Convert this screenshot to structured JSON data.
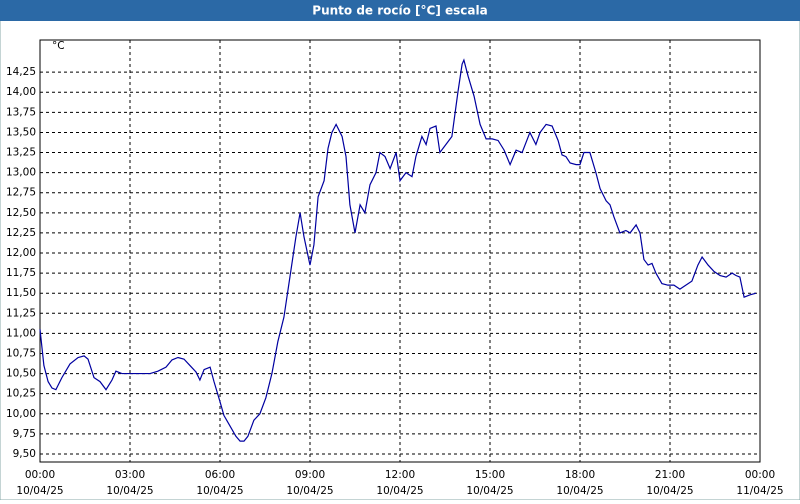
{
  "chart_data": {
    "type": "line",
    "title": "Punto de rocío [°C] escala",
    "y_unit": "°C",
    "color": "#0000a0",
    "grid": true,
    "x": [
      0,
      0.13,
      0.27,
      0.4,
      0.53,
      0.73,
      1,
      1.27,
      1.47,
      1.6,
      1.8,
      2,
      2.2,
      2.4,
      2.53,
      2.73,
      3,
      3.33,
      3.67,
      3.93,
      4.2,
      4.4,
      4.6,
      4.8,
      5,
      5.2,
      5.33,
      5.47,
      5.67,
      5.8,
      6,
      6.13,
      6.33,
      6.53,
      6.67,
      6.8,
      6.93,
      7.13,
      7.33,
      7.53,
      7.73,
      7.93,
      8.13,
      8.33,
      8.53,
      8.67,
      8.8,
      9,
      9.13,
      9.27,
      9.47,
      9.6,
      9.73,
      9.87,
      10.07,
      10.2,
      10.33,
      10.5,
      10.67,
      10.83,
      11,
      11.2,
      11.33,
      11.5,
      11.67,
      11.87,
      12,
      12.2,
      12.4,
      12.53,
      12.73,
      12.87,
      13,
      13.2,
      13.33,
      13.53,
      13.73,
      13.93,
      14.07,
      14.13,
      14.27,
      14.47,
      14.67,
      14.87,
      15.07,
      15.27,
      15.47,
      15.67,
      15.87,
      16.07,
      16.33,
      16.53,
      16.67,
      16.87,
      17.07,
      17.27,
      17.4,
      17.53,
      17.67,
      17.87,
      18,
      18.13,
      18.33,
      18.53,
      18.67,
      18.87,
      19,
      19.13,
      19.33,
      19.53,
      19.67,
      19.87,
      20,
      20.13,
      20.27,
      20.4,
      20.53,
      20.73,
      20.93,
      21.13,
      21.33,
      21.53,
      21.73,
      21.93,
      22.07,
      22.27,
      22.47,
      22.67,
      22.87,
      23.07,
      23.2,
      23.33,
      23.47,
      23.67,
      23.87
    ],
    "values": [
      11.05,
      10.6,
      10.4,
      10.32,
      10.3,
      10.45,
      10.62,
      10.7,
      10.72,
      10.68,
      10.45,
      10.4,
      10.3,
      10.42,
      10.53,
      10.5,
      10.5,
      10.5,
      10.5,
      10.53,
      10.58,
      10.67,
      10.7,
      10.68,
      10.6,
      10.52,
      10.42,
      10.55,
      10.58,
      10.4,
      10.15,
      9.98,
      9.85,
      9.72,
      9.66,
      9.66,
      9.72,
      9.92,
      10.0,
      10.2,
      10.5,
      10.9,
      11.2,
      11.7,
      12.2,
      12.5,
      12.2,
      11.85,
      12.1,
      12.7,
      12.9,
      13.3,
      13.5,
      13.6,
      13.45,
      13.2,
      12.6,
      12.25,
      12.6,
      12.5,
      12.85,
      13.0,
      13.25,
      13.2,
      13.05,
      13.25,
      12.9,
      13.0,
      12.95,
      13.2,
      13.45,
      13.35,
      13.55,
      13.58,
      13.25,
      13.35,
      13.45,
      14.0,
      14.35,
      14.4,
      14.2,
      13.95,
      13.6,
      13.42,
      13.42,
      13.4,
      13.28,
      13.1,
      13.28,
      13.25,
      13.5,
      13.35,
      13.5,
      13.6,
      13.58,
      13.4,
      13.22,
      13.2,
      13.12,
      13.1,
      13.1,
      13.25,
      13.25,
      13.0,
      12.8,
      12.65,
      12.6,
      12.45,
      12.25,
      12.28,
      12.25,
      12.35,
      12.25,
      11.92,
      11.85,
      11.87,
      11.75,
      11.62,
      11.6,
      11.6,
      11.55,
      11.6,
      11.65,
      11.85,
      11.95,
      11.85,
      11.77,
      11.72,
      11.7,
      11.75,
      11.72,
      11.7,
      11.45,
      11.48,
      11.5
    ],
    "xlim": [
      0,
      24
    ],
    "ylim": [
      9.4,
      14.65
    ],
    "xticks": [
      {
        "value": 0,
        "label": "00:00"
      },
      {
        "value": 3,
        "label": "03:00"
      },
      {
        "value": 6,
        "label": "06:00"
      },
      {
        "value": 9,
        "label": "09:00"
      },
      {
        "value": 12,
        "label": "12:00"
      },
      {
        "value": 15,
        "label": "15:00"
      },
      {
        "value": 18,
        "label": "18:00"
      },
      {
        "value": 21,
        "label": "21:00"
      },
      {
        "value": 24,
        "label": "00:00"
      }
    ],
    "xtick_dates": [
      "10/04/25",
      "10/04/25",
      "10/04/25",
      "10/04/25",
      "10/04/25",
      "10/04/25",
      "10/04/25",
      "10/04/25",
      "11/04/25"
    ],
    "yticks": [
      {
        "value": 9.5,
        "label": "9,50"
      },
      {
        "value": 9.75,
        "label": "9,75"
      },
      {
        "value": 10,
        "label": "10,00"
      },
      {
        "value": 10.25,
        "label": "10,25"
      },
      {
        "value": 10.5,
        "label": "10,50"
      },
      {
        "value": 10.75,
        "label": "10,75"
      },
      {
        "value": 11,
        "label": "11,00"
      },
      {
        "value": 11.25,
        "label": "11,25"
      },
      {
        "value": 11.5,
        "label": "11,50"
      },
      {
        "value": 11.75,
        "label": "11,75"
      },
      {
        "value": 12,
        "label": "12,00"
      },
      {
        "value": 12.25,
        "label": "12,25"
      },
      {
        "value": 12.5,
        "label": "12,50"
      },
      {
        "value": 12.75,
        "label": "12,75"
      },
      {
        "value": 13,
        "label": "13,00"
      },
      {
        "value": 13.25,
        "label": "13,25"
      },
      {
        "value": 13.5,
        "label": "13,50"
      },
      {
        "value": 13.75,
        "label": "13,75"
      },
      {
        "value": 14,
        "label": "14,00"
      },
      {
        "value": 14.25,
        "label": "14,25"
      }
    ]
  }
}
